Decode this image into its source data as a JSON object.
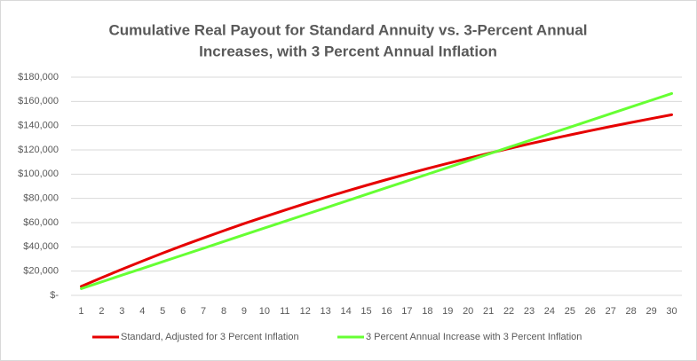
{
  "chart_data": {
    "type": "line",
    "title_lines": [
      "Cumulative Real Payout for Standard Annuity vs. 3-Percent Annual",
      "Increases, with 3 Percent Annual Inflation"
    ],
    "categories": [
      1,
      2,
      3,
      4,
      5,
      6,
      7,
      8,
      9,
      10,
      11,
      12,
      13,
      14,
      15,
      16,
      17,
      18,
      19,
      20,
      21,
      22,
      23,
      24,
      25,
      26,
      27,
      28,
      29,
      30
    ],
    "series": [
      {
        "name": "Standard, Adjusted for 3 Percent Inflation",
        "color": "#e60000",
        "values": [
          7379,
          14543,
          21497,
          28250,
          34806,
          41171,
          47350,
          53350,
          59174,
          64830,
          70320,
          75650,
          80826,
          85850,
          90728,
          95464,
          100062,
          104527,
          108861,
          113069,
          117154,
          121120,
          124971,
          128710,
          132340,
          135864,
          139285,
          142607,
          145833,
          148963
        ]
      },
      {
        "name": "3 Percent Annual Increase with 3 Percent Inflation",
        "color": "#66ff33",
        "values": [
          5550,
          11100,
          16650,
          22200,
          27750,
          33300,
          38850,
          44400,
          49950,
          55500,
          61050,
          66600,
          72150,
          77700,
          83250,
          88800,
          94350,
          99900,
          105450,
          111000,
          116550,
          122100,
          127650,
          133200,
          138750,
          144300,
          149850,
          155400,
          160950,
          166500
        ]
      }
    ],
    "ylim": [
      0,
      180000
    ],
    "yticks": [
      {
        "value": 0,
        "label": "$-"
      },
      {
        "value": 20000,
        "label": "$20,000"
      },
      {
        "value": 40000,
        "label": "$40,000"
      },
      {
        "value": 60000,
        "label": "$60,000"
      },
      {
        "value": 80000,
        "label": "$80,000"
      },
      {
        "value": 100000,
        "label": "$100,000"
      },
      {
        "value": 120000,
        "label": "$120,000"
      },
      {
        "value": 140000,
        "label": "$140,000"
      },
      {
        "value": 160000,
        "label": "$160,000"
      },
      {
        "value": 180000,
        "label": "$180,000"
      }
    ],
    "grid": true,
    "legend": "bottom"
  }
}
